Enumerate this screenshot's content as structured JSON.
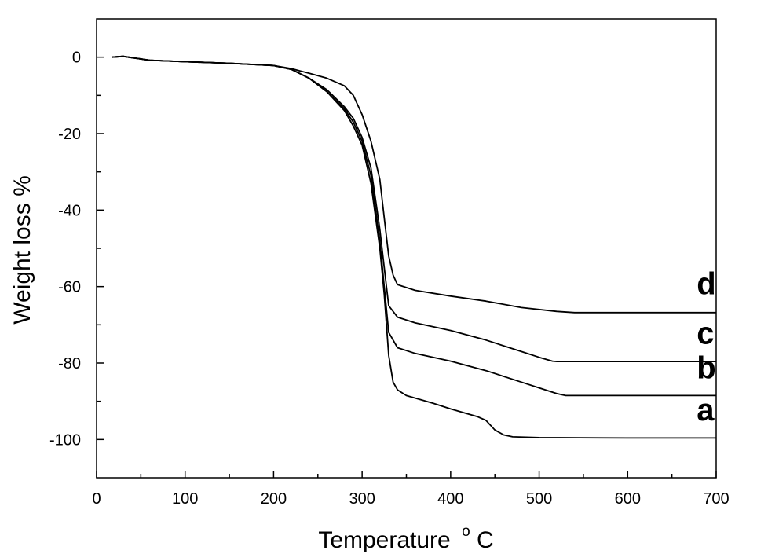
{
  "chart_data": {
    "type": "line",
    "title": "",
    "xlabel": "Temperature",
    "xlabel_unit": "C",
    "xlabel_unit_degree": "o",
    "ylabel": "Weight loss %",
    "xlim": [
      0,
      700
    ],
    "ylim": [
      -110,
      10
    ],
    "x_ticks": [
      0,
      100,
      200,
      300,
      400,
      500,
      600,
      700
    ],
    "y_ticks": [
      0,
      -20,
      -40,
      -60,
      -80,
      -100
    ],
    "grid": false,
    "line_color": "#000000",
    "series": [
      {
        "name": "a",
        "x": [
          17,
          30,
          60,
          100,
          150,
          200,
          220,
          240,
          260,
          280,
          290,
          300,
          310,
          320,
          325,
          330,
          335,
          340,
          350,
          380,
          400,
          430,
          440,
          450,
          460,
          470,
          500,
          600,
          700
        ],
        "y": [
          0,
          0.2,
          -0.8,
          -1.2,
          -1.6,
          -2.2,
          -3.2,
          -5.5,
          -9,
          -14,
          -18,
          -23,
          -33,
          -50,
          -62,
          -78,
          -85,
          -87,
          -88.5,
          -90.5,
          -92,
          -94,
          -95,
          -97.5,
          -98.8,
          -99.3,
          -99.5,
          -99.6,
          -99.6
        ]
      },
      {
        "name": "b",
        "x": [
          17,
          30,
          60,
          100,
          150,
          200,
          220,
          240,
          260,
          280,
          290,
          300,
          310,
          320,
          325,
          330,
          340,
          360,
          400,
          440,
          480,
          500,
          520,
          530,
          600,
          700
        ],
        "y": [
          0,
          0.2,
          -0.8,
          -1.2,
          -1.6,
          -2.2,
          -3.2,
          -5.5,
          -9,
          -13.5,
          -17,
          -22,
          -31,
          -48,
          -60,
          -72,
          -76,
          -77.5,
          -79.5,
          -82,
          -85,
          -86.5,
          -88,
          -88.5,
          -88.5,
          -88.5
        ]
      },
      {
        "name": "c",
        "x": [
          17,
          30,
          60,
          100,
          150,
          200,
          220,
          240,
          260,
          280,
          290,
          300,
          310,
          320,
          325,
          330,
          340,
          360,
          400,
          440,
          480,
          500,
          515,
          520,
          600,
          700
        ],
        "y": [
          0,
          0.2,
          -0.8,
          -1.2,
          -1.6,
          -2.2,
          -3.2,
          -5.5,
          -8.5,
          -13,
          -16,
          -21,
          -29,
          -45,
          -55,
          -65,
          -68,
          -69.5,
          -71.5,
          -74,
          -77,
          -78.5,
          -79.5,
          -79.6,
          -79.6,
          -79.6
        ]
      },
      {
        "name": "d",
        "x": [
          17,
          30,
          60,
          100,
          150,
          200,
          220,
          240,
          260,
          280,
          290,
          300,
          310,
          320,
          325,
          330,
          335,
          340,
          360,
          400,
          440,
          480,
          520,
          540,
          600,
          700
        ],
        "y": [
          0,
          0.2,
          -0.8,
          -1.2,
          -1.6,
          -2.2,
          -3,
          -4.2,
          -5.5,
          -7.5,
          -10,
          -15,
          -22,
          -32,
          -42,
          -52,
          -57,
          -59.5,
          -61,
          -62.5,
          -63.8,
          -65.5,
          -66.5,
          -66.8,
          -66.8,
          -66.8
        ]
      }
    ],
    "curve_labels": [
      {
        "text": "d",
        "x": 678,
        "y": -62
      },
      {
        "text": "c",
        "x": 678,
        "y": -75
      },
      {
        "text": "b",
        "x": 678,
        "y": -84
      },
      {
        "text": "a",
        "x": 678,
        "y": -95
      }
    ]
  }
}
